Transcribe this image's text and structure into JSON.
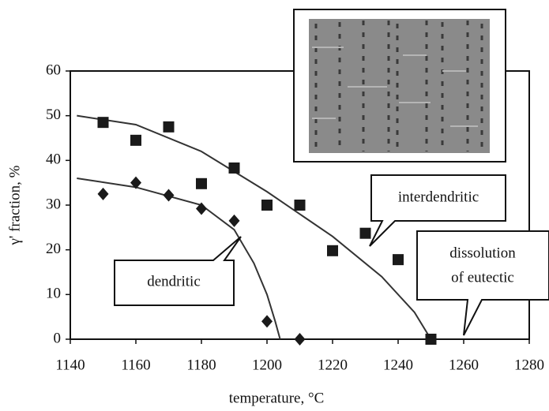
{
  "chart_data": {
    "type": "scatter",
    "xlabel": "temperature, °C",
    "ylabel": "γ' fraction, %",
    "xlim": [
      1140,
      1280
    ],
    "xticks": [
      1140,
      1160,
      1180,
      1200,
      1220,
      1240,
      1260,
      1280
    ],
    "ylim": [
      0,
      60
    ],
    "yticks": [
      0,
      10,
      20,
      30,
      40,
      50,
      60
    ],
    "series": [
      {
        "marker": "square",
        "color": "#1a1a1a",
        "x": [
          1150,
          1160,
          1170,
          1180,
          1190,
          1200,
          1210,
          1220,
          1230,
          1240,
          1250
        ],
        "values": [
          48.5,
          44.5,
          47.5,
          34.8,
          38.3,
          30,
          30,
          19.8,
          23.7,
          17.8,
          0
        ]
      },
      {
        "marker": "diamond",
        "color": "#1a1a1a",
        "x": [
          1150,
          1160,
          1170,
          1180,
          1190,
          1200,
          1210
        ],
        "values": [
          32.5,
          35,
          32.2,
          29.2,
          26.5,
          4,
          0
        ]
      }
    ],
    "curves": [
      {
        "color": "#333333",
        "x": [
          1142,
          1160,
          1180,
          1200,
          1220,
          1235,
          1245,
          1250
        ],
        "values": [
          50,
          48,
          42,
          33,
          23,
          14,
          6,
          0
        ]
      },
      {
        "color": "#333333",
        "x": [
          1142,
          1160,
          1180,
          1190,
          1196,
          1200,
          1202.5,
          1204
        ],
        "values": [
          36,
          34,
          30,
          24.5,
          17,
          10,
          4,
          0
        ]
      }
    ],
    "annotations": {
      "interdendritic": "interdendritic",
      "dendritic": "dendritic",
      "eutectic": [
        "dissolution",
        "of eutectic"
      ]
    }
  }
}
